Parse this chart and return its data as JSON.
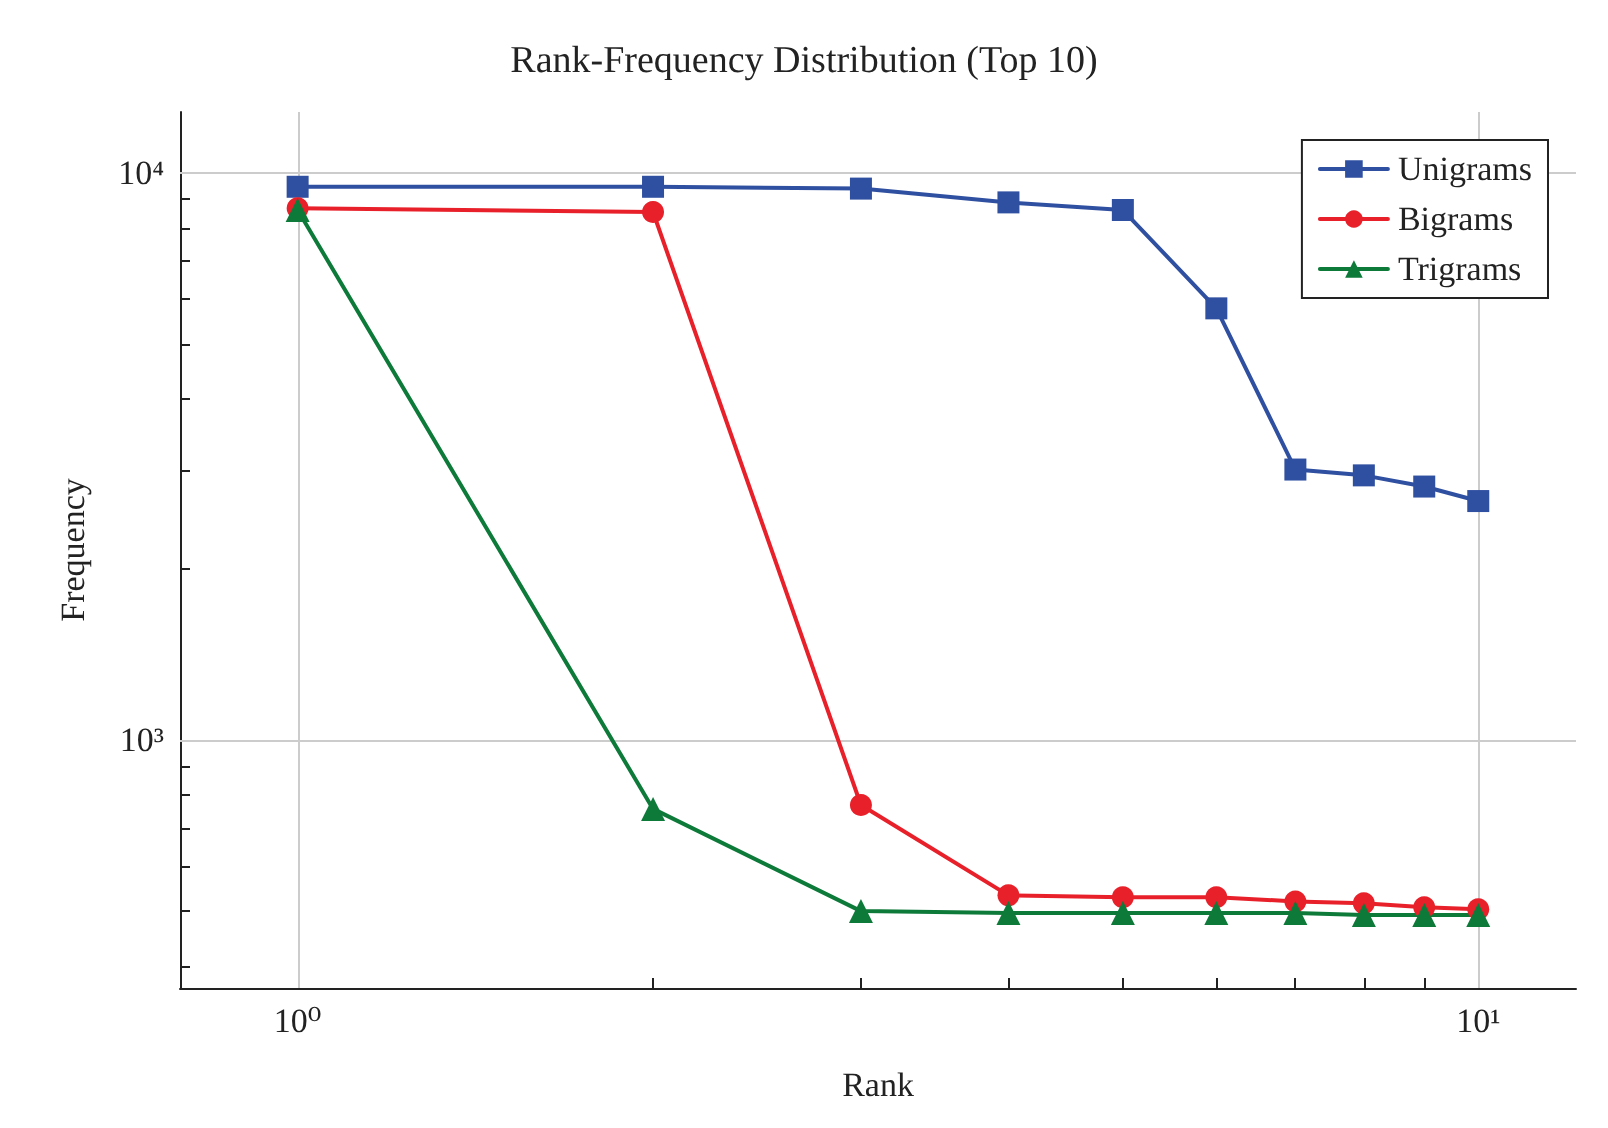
{
  "chart_data": {
    "type": "line",
    "title": "Rank-Frequency Distribution (Top 10)",
    "xlabel": "Rank",
    "ylabel": "Frequency",
    "x": [
      1,
      2,
      3,
      4,
      5,
      6,
      7,
      8,
      9,
      10
    ],
    "series": [
      {
        "name": "Unigrams",
        "color": "#2f4fa0",
        "marker": "square",
        "values": [
          9450,
          9450,
          9380,
          8870,
          8600,
          5770,
          3000,
          2930,
          2800,
          2640
        ]
      },
      {
        "name": "Bigrams",
        "color": "#e8202a",
        "marker": "circle",
        "values": [
          8660,
          8530,
          769,
          533,
          529,
          529,
          520,
          516,
          508,
          504
        ]
      },
      {
        "name": "Trigrams",
        "color": "#0e7a3a",
        "marker": "triangle",
        "values": [
          8600,
          757,
          500,
          496,
          496,
          496,
          496,
          492,
          492,
          492
        ]
      }
    ],
    "log": "xy",
    "xlim": [
      0.795,
      12.1
    ],
    "ylim": [
      366,
      12800
    ],
    "xticks": [
      {
        "value": 1,
        "label": "10⁰"
      },
      {
        "value": 2,
        "label": null
      },
      {
        "value": 3,
        "label": null
      },
      {
        "value": 4,
        "label": null
      },
      {
        "value": 5,
        "label": null
      },
      {
        "value": 6,
        "label": null
      },
      {
        "value": 7,
        "label": null
      },
      {
        "value": 8,
        "label": null
      },
      {
        "value": 9,
        "label": null
      },
      {
        "value": 10,
        "label": "10¹"
      }
    ],
    "yticks": [
      {
        "value": 400,
        "label": null
      },
      {
        "value": 500,
        "label": null
      },
      {
        "value": 600,
        "label": null
      },
      {
        "value": 700,
        "label": null
      },
      {
        "value": 800,
        "label": null
      },
      {
        "value": 900,
        "label": null
      },
      {
        "value": 1000,
        "label": "10³"
      },
      {
        "value": 2000,
        "label": null
      },
      {
        "value": 3000,
        "label": null
      },
      {
        "value": 4000,
        "label": null
      },
      {
        "value": 5000,
        "label": null
      },
      {
        "value": 6000,
        "label": null
      },
      {
        "value": 7000,
        "label": null
      },
      {
        "value": 8000,
        "label": null
      },
      {
        "value": 9000,
        "label": null
      },
      {
        "value": 10000,
        "label": "10⁴"
      }
    ],
    "grid": true,
    "legend": "top right",
    "line_style": "solid"
  }
}
